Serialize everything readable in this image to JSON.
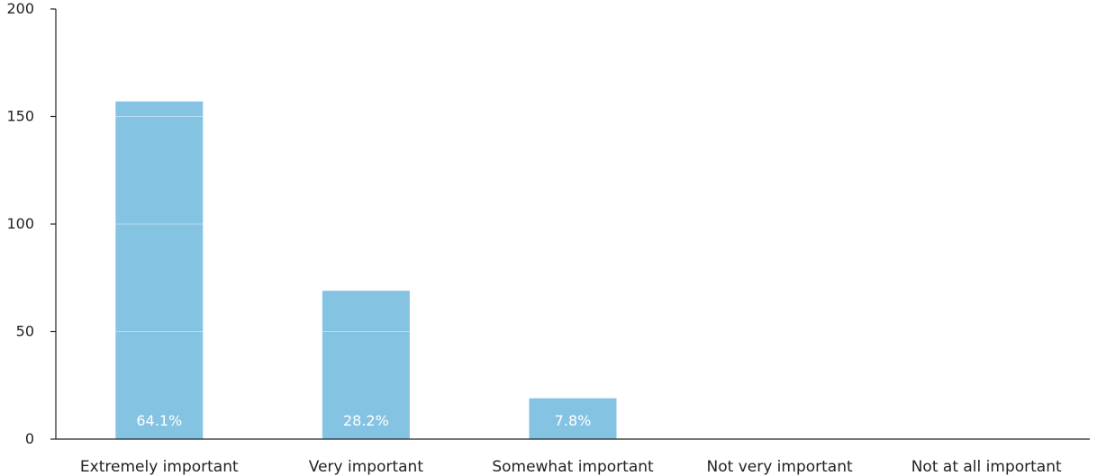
{
  "chart_data": {
    "type": "bar",
    "categories": [
      "Extremely important",
      "Very important",
      "Somewhat important",
      "Not very important",
      "Not at all important"
    ],
    "values": [
      157,
      69,
      19,
      0,
      0
    ],
    "data_labels": [
      "64.1%",
      "28.2%",
      "7.8%",
      "",
      ""
    ],
    "yticks": [
      "0",
      "50",
      "100",
      "150",
      "200"
    ],
    "ylim": [
      0,
      200
    ],
    "grid": "y-major, drawn over bars only",
    "legend": "none",
    "colors": {
      "bar": "#85c3e3",
      "axis": "#222222",
      "bar_gridline": "#b5dcef"
    }
  }
}
